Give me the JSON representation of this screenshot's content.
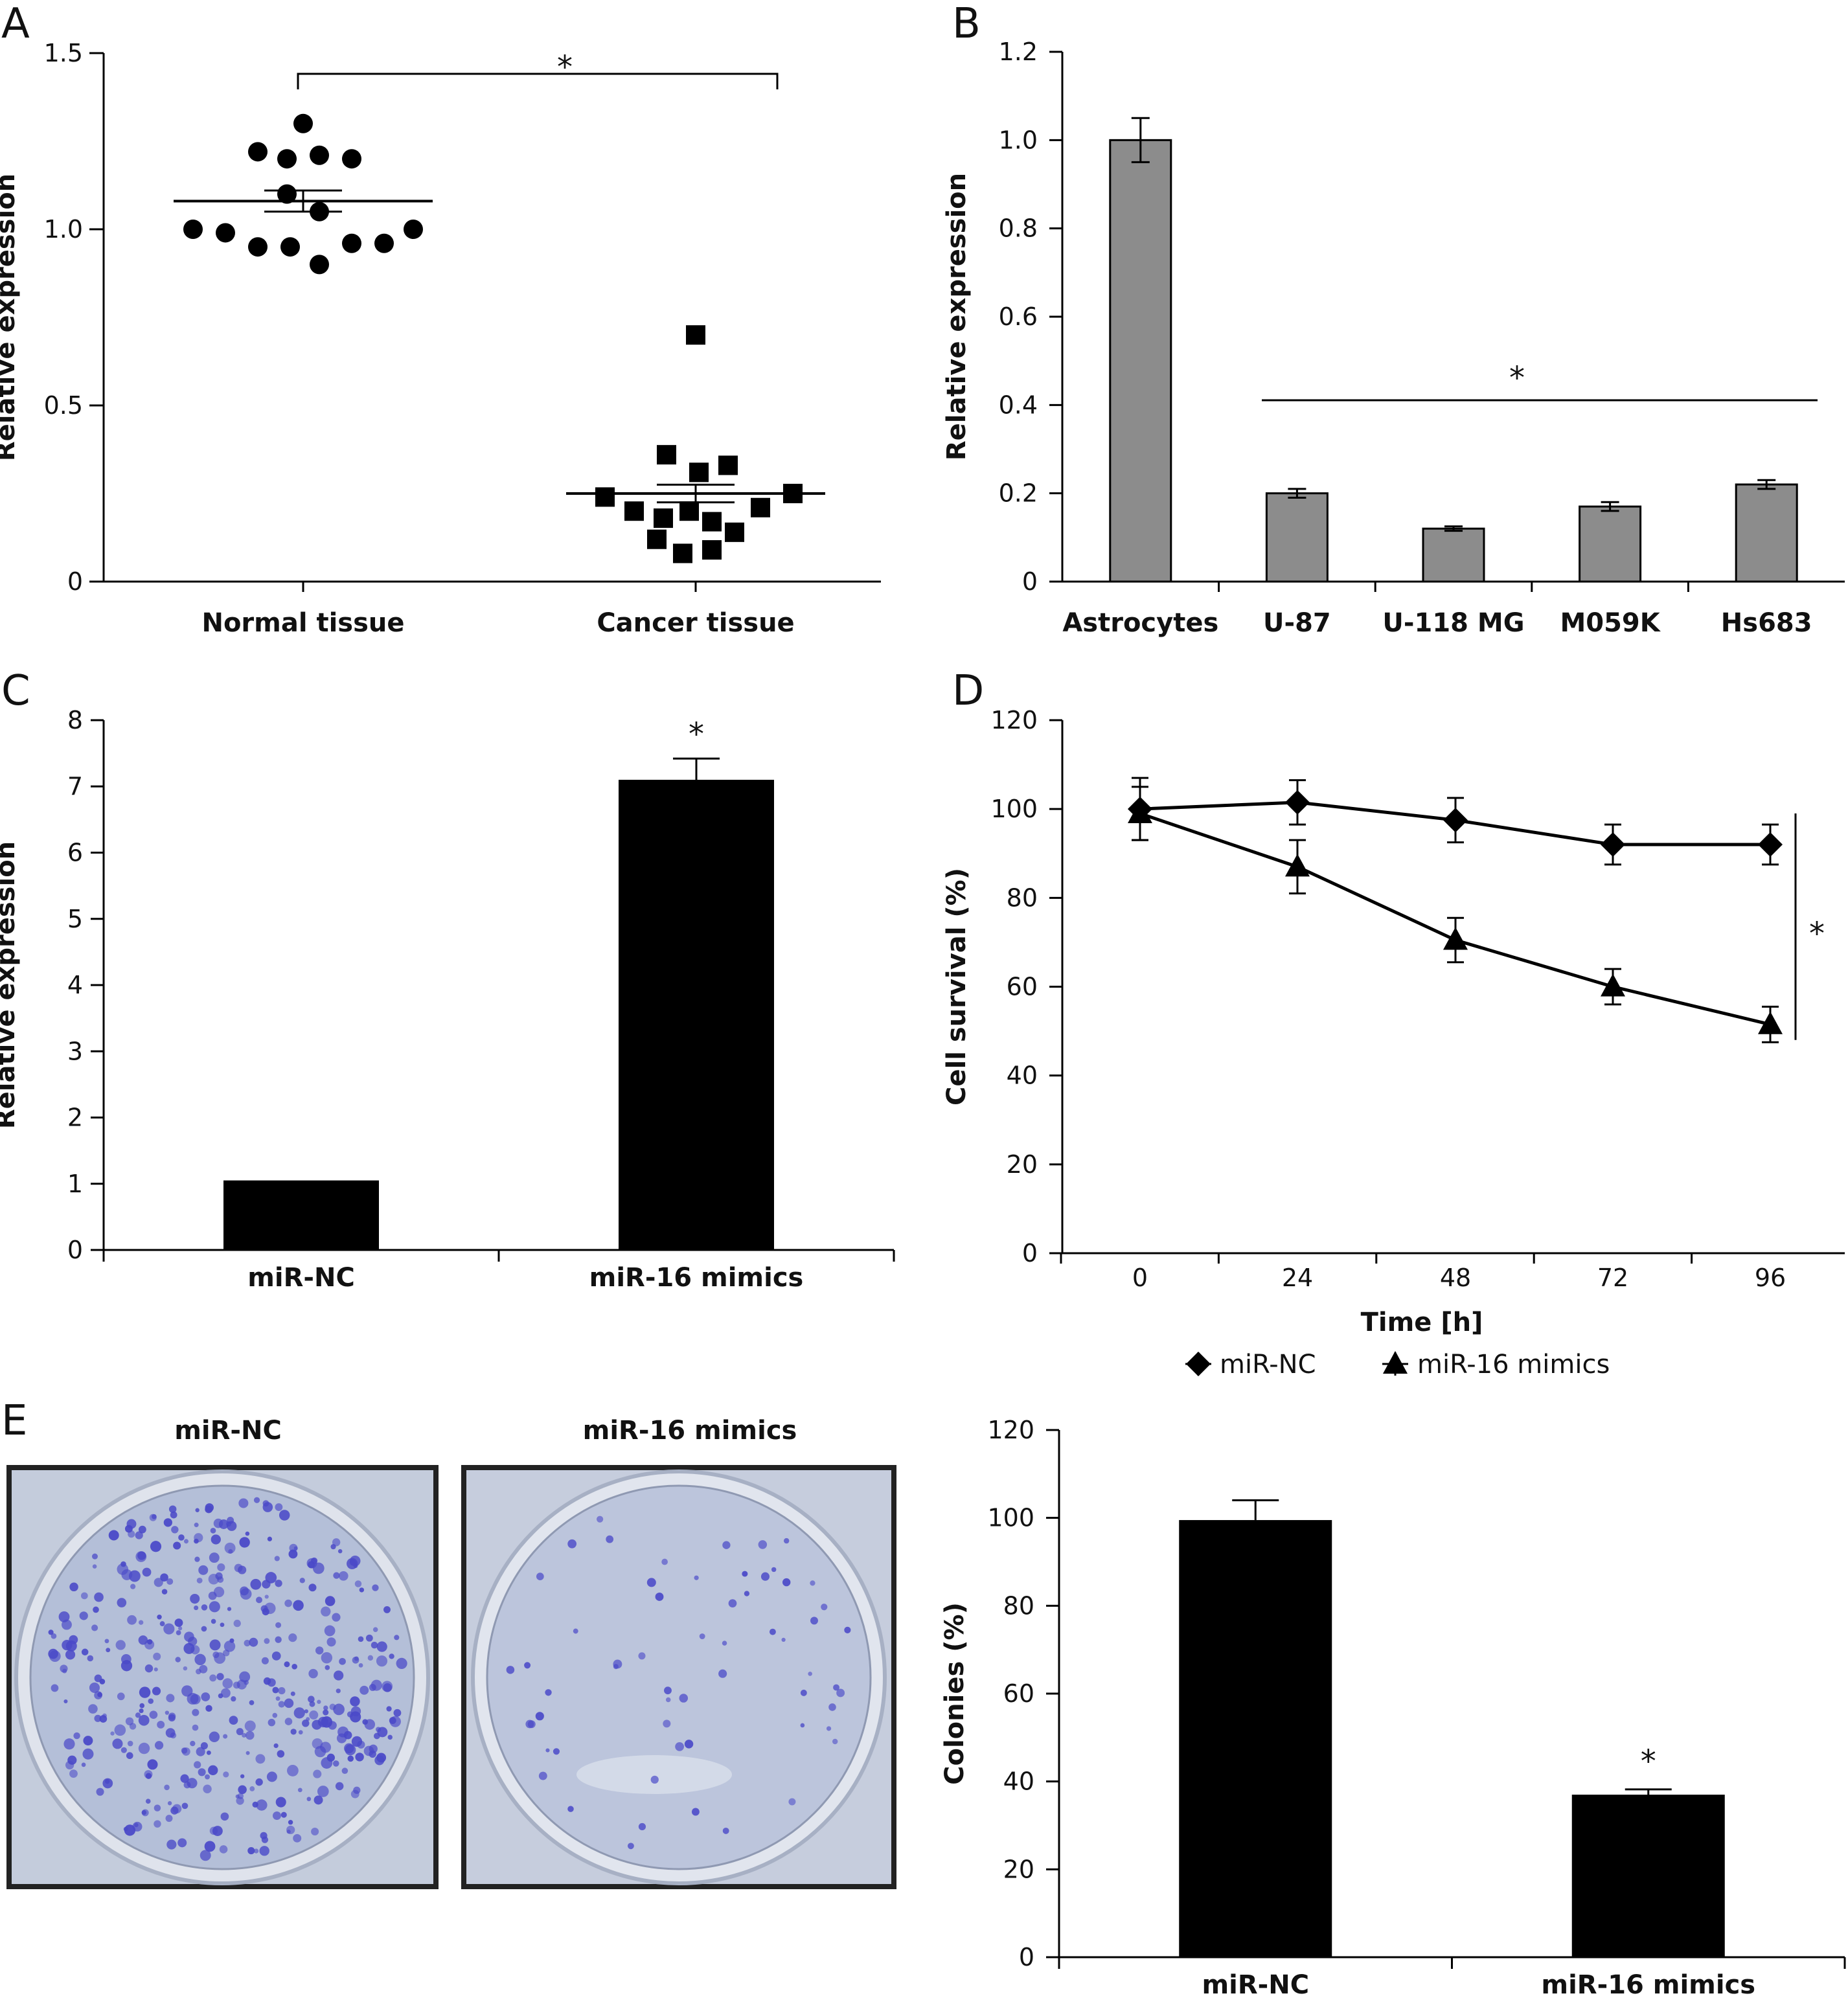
{
  "colors": {
    "gray_bar": "#8c8c8c",
    "black": "#000000",
    "plate_bg": "#b6c0d7",
    "colony": "#4a49c8"
  },
  "panels": {
    "A": {
      "letter": "A"
    },
    "B": {
      "letter": "B"
    },
    "C": {
      "letter": "C"
    },
    "D": {
      "letter": "D"
    },
    "E": {
      "letter": "E",
      "photo_titles": [
        "miR-NC",
        "miR-16 mimics"
      ]
    }
  },
  "chart_data": [
    {
      "id": "A",
      "type": "scatter",
      "ylabel": "Relative expression",
      "ylim": [
        0,
        1.5
      ],
      "yticks": [
        "0",
        "0.5",
        "1.0",
        "1.5"
      ],
      "categories": [
        "Normal tissue",
        "Cancer tissue"
      ],
      "series": [
        {
          "points": [
            1.0,
            0.99,
            0.95,
            0.95,
            0.9,
            0.96,
            0.96,
            1.0,
            1.22,
            1.2,
            1.21,
            1.2,
            1.3,
            1.1,
            1.05
          ]
        },
        {
          "points": [
            0.24,
            0.2,
            0.12,
            0.08,
            0.18,
            0.09,
            0.14,
            0.21,
            0.25,
            0.36,
            0.31,
            0.33,
            0.7,
            0.17,
            0.2
          ]
        }
      ],
      "mean": [
        1.08,
        0.25
      ],
      "sem": [
        0.03,
        0.025
      ],
      "significance": "*"
    },
    {
      "id": "B",
      "type": "bar",
      "ylabel": "Relative expression",
      "ylim": [
        0,
        1.2
      ],
      "yticks": [
        "0",
        "0.2",
        "0.4",
        "0.6",
        "0.8",
        "1.0",
        "1.2"
      ],
      "categories": [
        "Astrocytes",
        "U-87",
        "U-118 MG",
        "M059K",
        "Hs683"
      ],
      "values": [
        1.0,
        0.2,
        0.12,
        0.17,
        0.22
      ],
      "errors": [
        0.05,
        0.01,
        0.005,
        0.01,
        0.01
      ],
      "significance": "*"
    },
    {
      "id": "C",
      "type": "bar",
      "ylabel": "Relative expression",
      "ylim": [
        0,
        8
      ],
      "yticks": [
        "0",
        "1",
        "2",
        "3",
        "4",
        "5",
        "6",
        "7",
        "8"
      ],
      "categories": [
        "miR-NC",
        "miR-16 mimics"
      ],
      "values": [
        1.05,
        7.1
      ],
      "errors": [
        0,
        0.32
      ],
      "significance": "*"
    },
    {
      "id": "D",
      "type": "line",
      "xlabel": "Time [h]",
      "ylabel": "Cell survival (%)",
      "ylim": [
        0,
        120
      ],
      "yticks": [
        "0",
        "20",
        "40",
        "60",
        "80",
        "100",
        "120"
      ],
      "x": [
        "0",
        "24",
        "48",
        "72",
        "96"
      ],
      "series": [
        {
          "name": "miR-NC",
          "values": [
            100,
            101.5,
            97.5,
            92,
            92
          ],
          "errors": [
            7,
            5,
            5,
            4.5,
            4.5
          ]
        },
        {
          "name": "miR-16 mimics",
          "values": [
            99,
            87,
            70.5,
            60,
            51.5
          ],
          "errors": [
            6,
            6,
            5,
            4,
            4
          ]
        }
      ],
      "significance": "*"
    },
    {
      "id": "E",
      "type": "bar",
      "ylabel": "Colonies (%)",
      "ylim": [
        0,
        120
      ],
      "yticks": [
        "0",
        "20",
        "40",
        "60",
        "80",
        "100",
        "120"
      ],
      "categories": [
        "miR-NC",
        "miR-16 mimics"
      ],
      "values": [
        99.5,
        37
      ],
      "errors": [
        4.5,
        1.2
      ],
      "significance": "*"
    }
  ]
}
